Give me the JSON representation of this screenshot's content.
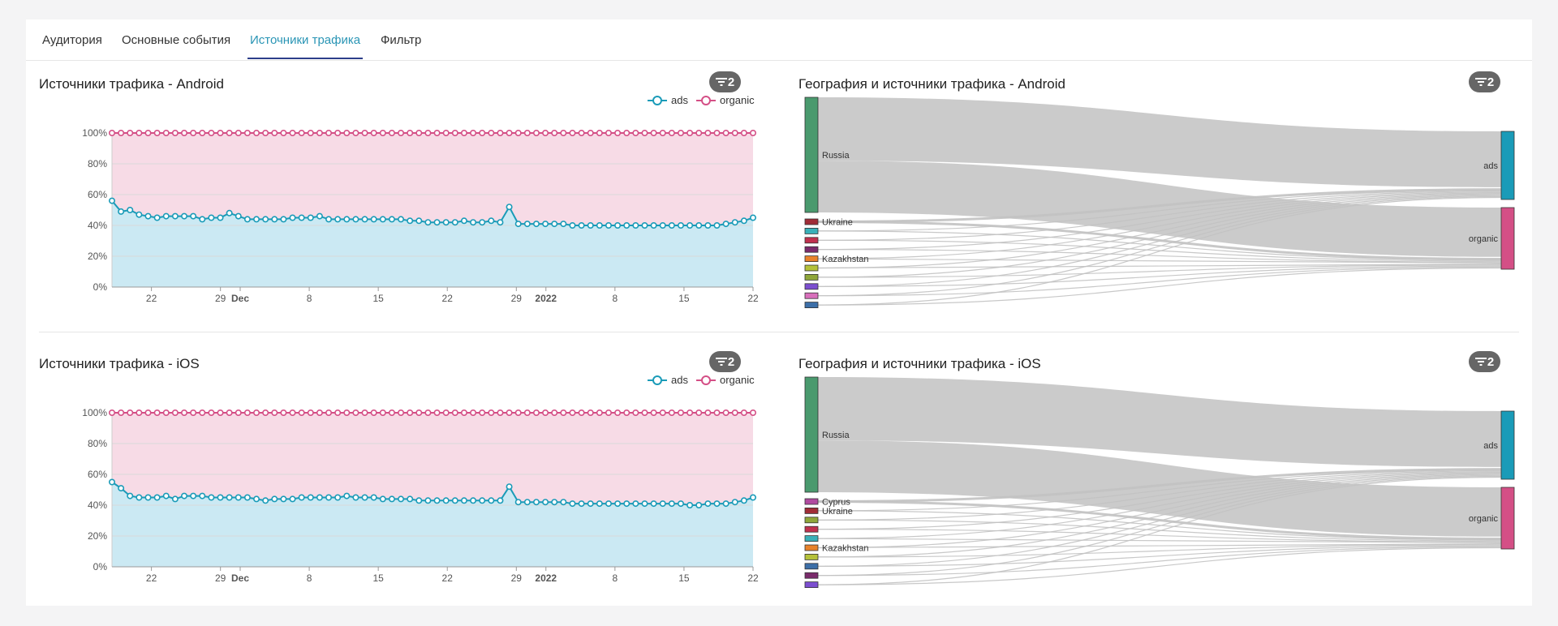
{
  "tabs": [
    {
      "label": "Аудитория",
      "active": false
    },
    {
      "label": "Основные события",
      "active": false
    },
    {
      "label": "Источники трафика",
      "active": true
    },
    {
      "label": "Фильтр",
      "active": false
    }
  ],
  "colors": {
    "ads": "#1a9bb8",
    "organic": "#d44f86",
    "ads_fill": "#cbe9f3",
    "organic_fill": "#f7dbe6",
    "accent": "#2a95b5"
  },
  "panels": {
    "android_sources": {
      "title": "Источники трафика - Android",
      "badge": "2"
    },
    "android_geo": {
      "title": "География и источники трафика - Android",
      "badge": "2"
    },
    "ios_sources": {
      "title": "Источники трафика - iOS",
      "badge": "2"
    },
    "ios_geo": {
      "title": "География и источники трафика - iOS",
      "badge": "2"
    }
  },
  "chart_data": [
    {
      "type": "area",
      "title": "Источники трафика - Android",
      "stacking": "percent",
      "ylim": [
        0,
        100
      ],
      "y_ticks": [
        "0%",
        "20%",
        "40%",
        "60%",
        "80%",
        "100%"
      ],
      "x_tick_labels": [
        {
          "label": "22",
          "bold": false
        },
        {
          "label": "29",
          "bold": false
        },
        {
          "label": "Dec",
          "bold": true
        },
        {
          "label": "8",
          "bold": false
        },
        {
          "label": "15",
          "bold": false
        },
        {
          "label": "22",
          "bold": false
        },
        {
          "label": "29",
          "bold": false
        },
        {
          "label": "2022",
          "bold": true
        },
        {
          "label": "8",
          "bold": false
        },
        {
          "label": "15",
          "bold": false
        },
        {
          "label": "22",
          "bold": false
        }
      ],
      "x_range": [
        "2021-11-18",
        "2022-01-22"
      ],
      "legend_position": "top-right",
      "series": [
        {
          "name": "ads",
          "values": [
            56,
            49,
            50,
            47,
            46,
            45,
            46,
            46,
            46,
            46,
            44,
            45,
            45,
            48,
            46,
            44,
            44,
            44,
            44,
            44,
            45,
            45,
            45,
            46,
            44,
            44,
            44,
            44,
            44,
            44,
            44,
            44,
            44,
            43,
            43,
            42,
            42,
            42,
            42,
            43,
            42,
            42,
            43,
            42,
            52,
            41,
            41,
            41,
            41,
            41,
            41,
            40,
            40,
            40,
            40,
            40,
            40,
            40,
            40,
            40,
            40,
            40,
            40,
            40,
            40,
            40,
            40,
            40,
            41,
            42,
            43,
            45
          ]
        },
        {
          "name": "organic",
          "values_note_percent": true,
          "values": [
            44,
            51,
            50,
            53,
            54,
            55,
            54,
            54,
            54,
            54,
            56,
            55,
            55,
            52,
            54,
            56,
            56,
            56,
            56,
            56,
            55,
            55,
            55,
            54,
            56,
            56,
            56,
            56,
            56,
            56,
            56,
            56,
            56,
            57,
            57,
            58,
            58,
            58,
            58,
            57,
            58,
            58,
            57,
            58,
            48,
            59,
            59,
            59,
            59,
            59,
            59,
            60,
            60,
            60,
            60,
            60,
            60,
            60,
            60,
            60,
            60,
            60,
            60,
            60,
            60,
            60,
            60,
            60,
            59,
            58,
            57,
            55
          ]
        }
      ]
    },
    {
      "type": "area",
      "title": "Источники трафика - iOS",
      "stacking": "percent",
      "ylim": [
        0,
        100
      ],
      "y_ticks": [
        "0%",
        "20%",
        "40%",
        "60%",
        "80%",
        "100%"
      ],
      "x_tick_labels": [
        {
          "label": "22",
          "bold": false
        },
        {
          "label": "29",
          "bold": false
        },
        {
          "label": "Dec",
          "bold": true
        },
        {
          "label": "8",
          "bold": false
        },
        {
          "label": "15",
          "bold": false
        },
        {
          "label": "22",
          "bold": false
        },
        {
          "label": "29",
          "bold": false
        },
        {
          "label": "2022",
          "bold": true
        },
        {
          "label": "8",
          "bold": false
        },
        {
          "label": "15",
          "bold": false
        },
        {
          "label": "22",
          "bold": false
        }
      ],
      "x_range": [
        "2021-11-18",
        "2022-01-22"
      ],
      "legend_position": "top-right",
      "series": [
        {
          "name": "ads",
          "values": [
            55,
            51,
            46,
            45,
            45,
            45,
            46,
            44,
            46,
            46,
            46,
            45,
            45,
            45,
            45,
            45,
            44,
            43,
            44,
            44,
            44,
            45,
            45,
            45,
            45,
            45,
            46,
            45,
            45,
            45,
            44,
            44,
            44,
            44,
            43,
            43,
            43,
            43,
            43,
            43,
            43,
            43,
            43,
            43,
            52,
            42,
            42,
            42,
            42,
            42,
            42,
            41,
            41,
            41,
            41,
            41,
            41,
            41,
            41,
            41,
            41,
            41,
            41,
            41,
            40,
            40,
            41,
            41,
            41,
            42,
            43,
            45
          ]
        },
        {
          "name": "organic",
          "values": [
            45,
            49,
            54,
            55,
            55,
            55,
            54,
            56,
            54,
            54,
            54,
            55,
            55,
            55,
            55,
            55,
            56,
            57,
            56,
            56,
            56,
            55,
            55,
            55,
            55,
            55,
            54,
            55,
            55,
            55,
            56,
            56,
            56,
            56,
            57,
            57,
            57,
            57,
            57,
            57,
            57,
            57,
            57,
            57,
            48,
            58,
            58,
            58,
            58,
            58,
            58,
            59,
            59,
            59,
            59,
            59,
            59,
            59,
            59,
            59,
            59,
            59,
            59,
            59,
            60,
            60,
            59,
            59,
            59,
            58,
            57,
            55
          ]
        }
      ]
    }
  ],
  "sankey": {
    "android": {
      "targets": [
        {
          "label": "ads",
          "color": "#1a9bb8"
        },
        {
          "label": "organic",
          "color": "#d44f86"
        }
      ],
      "sources": [
        {
          "label": "Russia",
          "color": "#4a9a6e"
        },
        {
          "label": "Ukraine",
          "color": "#a02c37"
        },
        {
          "label": "",
          "color": "#3ab0b8"
        },
        {
          "label": "",
          "color": "#c0304e"
        },
        {
          "label": "",
          "color": "#7a2b6b"
        },
        {
          "label": "Kazakhstan",
          "color": "#e8822a"
        },
        {
          "label": "",
          "color": "#b5c13a"
        },
        {
          "label": "",
          "color": "#8fa63a"
        },
        {
          "label": "",
          "color": "#7c4fd0"
        },
        {
          "label": "",
          "color": "#d86fbb"
        },
        {
          "label": "",
          "color": "#3d6fa8"
        }
      ]
    },
    "ios": {
      "targets": [
        {
          "label": "ads",
          "color": "#1a9bb8"
        },
        {
          "label": "organic",
          "color": "#d44f86"
        }
      ],
      "sources": [
        {
          "label": "Russia",
          "color": "#4a9a6e"
        },
        {
          "label": "Cyprus",
          "color": "#b04aa0"
        },
        {
          "label": "Ukraine",
          "color": "#a02c37"
        },
        {
          "label": "",
          "color": "#8fa63a"
        },
        {
          "label": "",
          "color": "#c0304e"
        },
        {
          "label": "",
          "color": "#3ab0b8"
        },
        {
          "label": "Kazakhstan",
          "color": "#e8822a"
        },
        {
          "label": "",
          "color": "#b5c13a"
        },
        {
          "label": "",
          "color": "#3d6fa8"
        },
        {
          "label": "",
          "color": "#7a2b6b"
        },
        {
          "label": "",
          "color": "#7c4fd0"
        }
      ]
    }
  }
}
